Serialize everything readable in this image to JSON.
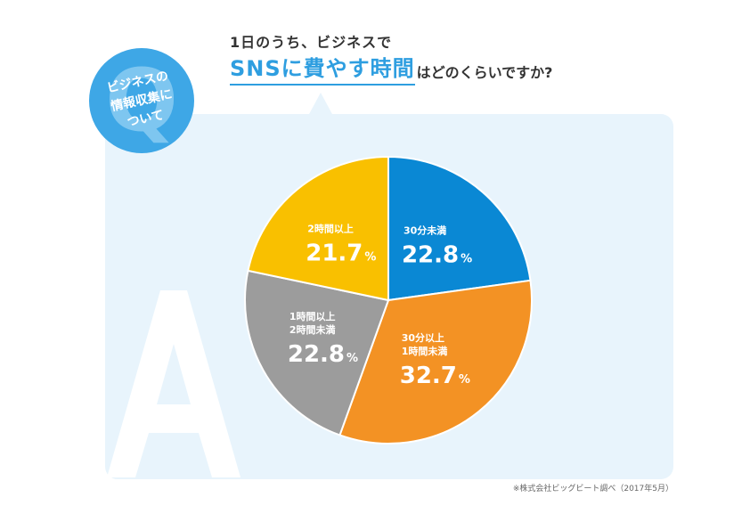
{
  "question_badge": {
    "letter": "Q",
    "lines": [
      "ビジネスの",
      "情報収集に",
      "ついて"
    ]
  },
  "answer_letter": "A",
  "title": {
    "line1": "1日のうち、ビジネスで",
    "highlight": "SNSに費やす時間",
    "rest": "はどのくらいですか?"
  },
  "source_note": "※株式会社ビッグビート調べ（2017年5月）",
  "colors": {
    "accent": "#2e9ee0",
    "panel": "#e8f4fc",
    "badge": "#3ea7e6"
  },
  "chart_data": {
    "type": "pie",
    "title": "1日のうち、ビジネスでSNSに費やす時間はどのくらいですか?",
    "unit": "%",
    "start_angle_deg": 0,
    "direction": "clockwise",
    "slices": [
      {
        "label_lines": [
          "30分未満"
        ],
        "value": 22.8,
        "color": "#0a88d4"
      },
      {
        "label_lines": [
          "30分以上",
          "1時間未満"
        ],
        "value": 32.7,
        "color": "#f39224"
      },
      {
        "label_lines": [
          "1時間以上",
          "2時間未満"
        ],
        "value": 22.8,
        "color": "#9c9c9c"
      },
      {
        "label_lines": [
          "2時間以上"
        ],
        "value": 21.7,
        "color": "#f9c000"
      }
    ]
  }
}
